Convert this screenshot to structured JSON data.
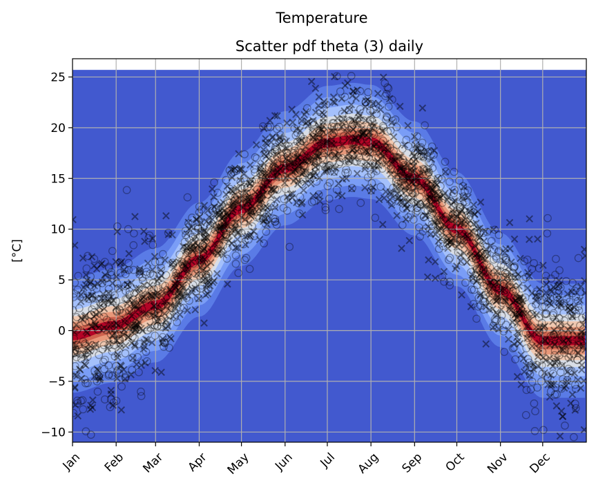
{
  "chart_data": {
    "type": "scatter",
    "suptitle": "Temperature",
    "title": "Scatter pdf theta (3) daily",
    "xlabel": "",
    "ylabel": "[$^{\\circ}C$]",
    "ylabel_display": "[°C]",
    "x_unit": "day of year",
    "xlim": [
      1,
      366
    ],
    "ylim": [
      -11.0,
      26.8
    ],
    "x_ticks": [
      {
        "label": "Jan",
        "day": 1
      },
      {
        "label": "Feb",
        "day": 32
      },
      {
        "label": "Mar",
        "day": 60
      },
      {
        "label": "Apr",
        "day": 91
      },
      {
        "label": "May",
        "day": 121
      },
      {
        "label": "Jun",
        "day": 152
      },
      {
        "label": "Jul",
        "day": 182
      },
      {
        "label": "Aug",
        "day": 213
      },
      {
        "label": "Sep",
        "day": 244
      },
      {
        "label": "Oct",
        "day": 274
      },
      {
        "label": "Nov",
        "day": 305
      },
      {
        "label": "Dec",
        "day": 335
      }
    ],
    "y_ticks": [
      {
        "value": 25,
        "label": "25"
      },
      {
        "value": 20,
        "label": "20"
      },
      {
        "value": 15,
        "label": "15"
      },
      {
        "value": 10,
        "label": "10"
      },
      {
        "value": 5,
        "label": "5"
      },
      {
        "value": 0,
        "label": "0"
      },
      {
        "value": -5,
        "label": "−5"
      },
      {
        "value": -10,
        "label": "−10"
      }
    ],
    "grid": true,
    "pdf_background": {
      "colormap": "coolwarm",
      "base_color": "#4259cf",
      "top_edge": 25.7,
      "mean_curve": {
        "day": [
          1,
          30,
          60,
          91,
          121,
          152,
          182,
          200,
          213,
          244,
          274,
          305,
          335,
          366
        ],
        "temp": [
          -0.5,
          0.5,
          2.5,
          7.0,
          12.0,
          16.0,
          18.5,
          18.8,
          18.6,
          15.0,
          10.0,
          4.0,
          -1.0,
          -1.0
        ]
      },
      "spread": 4.5
    },
    "series": [
      {
        "marker": "o",
        "color": "#000000",
        "alpha": 0.35
      },
      {
        "marker": "x",
        "color": "#000000",
        "alpha": 0.45
      }
    ]
  }
}
